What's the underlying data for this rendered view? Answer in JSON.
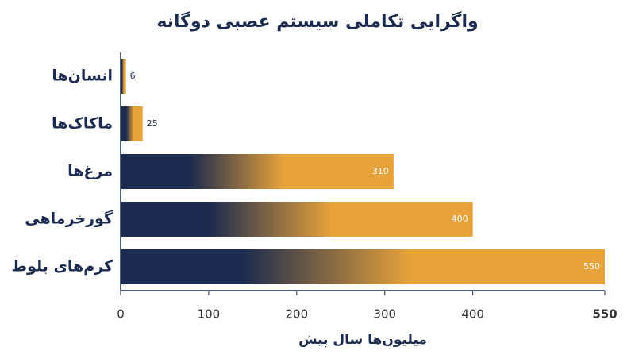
{
  "chart_data": {
    "type": "barh",
    "title": "واگرایی تکاملی سیستم عصبی دوگانه",
    "categories": [
      "انسان‌ها",
      "ماکاک‌ها",
      "مرغ‌ها",
      "گورخرماهی",
      "کرم‌های بلوط"
    ],
    "values": [
      6,
      25,
      310,
      400,
      550
    ],
    "gradient": [
      "#1b2a4e",
      "#e8a23a"
    ],
    "xlim": [
      0,
      550
    ],
    "xticks": [
      0,
      100,
      200,
      300,
      400,
      550
    ],
    "xlabel": "میلیون‌ها سال پیش",
    "grid": false
  }
}
